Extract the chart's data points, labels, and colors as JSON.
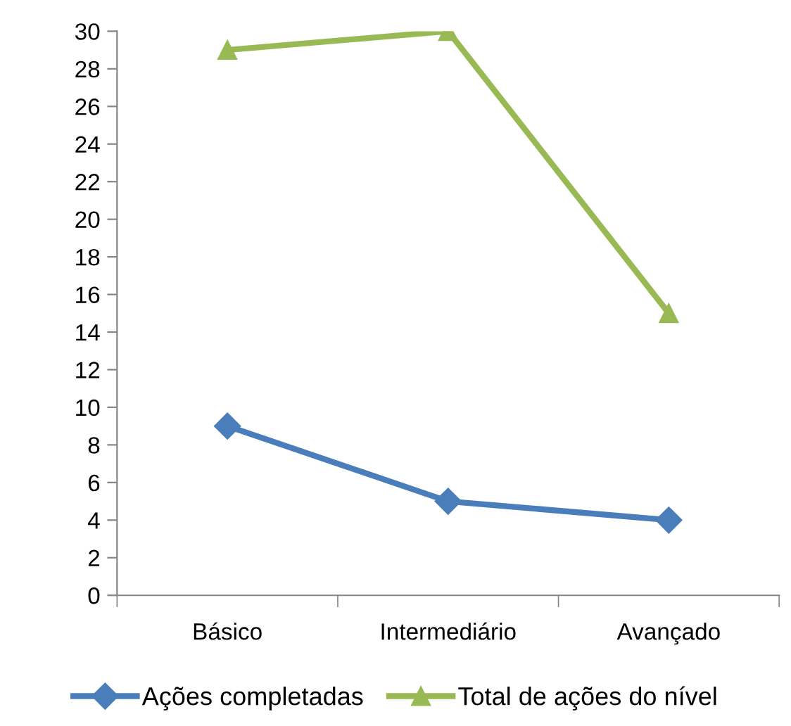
{
  "chart_data": {
    "type": "line",
    "categories": [
      "Básico",
      "Intermediário",
      "Avançado"
    ],
    "series": [
      {
        "name": "Ações completadas",
        "color": "#4a7ebb",
        "values": [
          9,
          5,
          4
        ],
        "marker": "diamond"
      },
      {
        "name": "Total de ações do nível",
        "color": "#98b954",
        "values": [
          29,
          30,
          15
        ],
        "marker": "triangle"
      }
    ],
    "ylim": [
      0,
      30
    ],
    "yticks": [
      0,
      2,
      4,
      6,
      8,
      10,
      12,
      14,
      16,
      18,
      20,
      22,
      24,
      26,
      28,
      30
    ],
    "grid": false,
    "legend": "bottom",
    "line_style": "solid"
  }
}
